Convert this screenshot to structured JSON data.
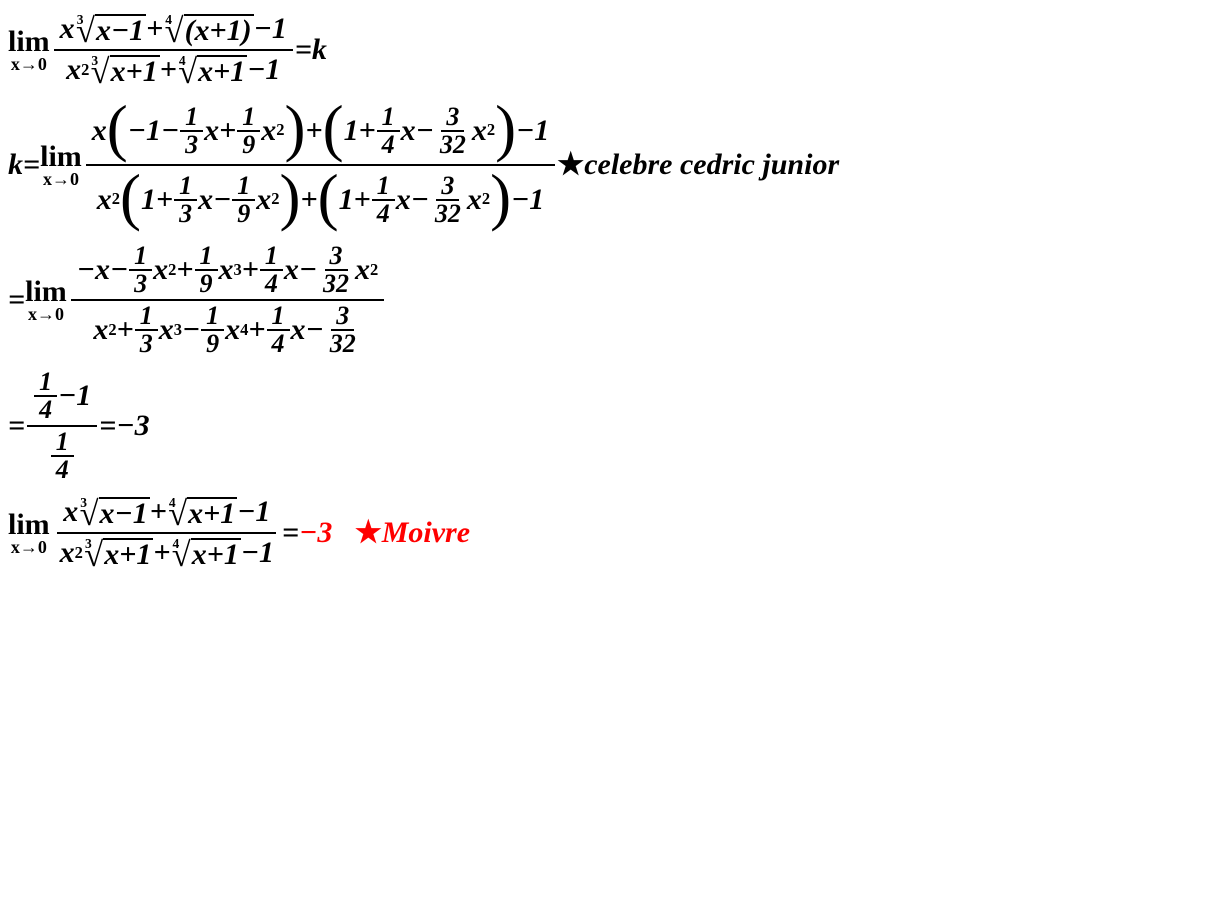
{
  "colors": {
    "text": "#000000",
    "highlight": "#ff0000",
    "background": "#ffffff"
  },
  "typography": {
    "font_family": "Times New Roman, serif",
    "base_size_pt": 30,
    "style": "italic bold"
  },
  "line1": {
    "lim_top": "lim",
    "lim_bot": "x→0",
    "num": "x∛(x−1)+∜(x+1)−1",
    "den": "x²∛(x+1)+∜(x+1)−1",
    "eq": "=k"
  },
  "line2": {
    "lhs": "k=",
    "lim_top": "lim",
    "lim_bot": "x→0",
    "num_parts": {
      "pre": "x",
      "p1_a": "−1−",
      "p1_f1n": "1",
      "p1_f1d": "3",
      "p1_b": "x+",
      "p1_f2n": "1",
      "p1_f2d": "9",
      "p1_c": "x",
      "p1_sup": "2",
      "mid": "+",
      "p2_a": "1+",
      "p2_f1n": "1",
      "p2_f1d": "4",
      "p2_b": "x−",
      "p2_f2n": "3",
      "p2_f2d": "32",
      "p2_c": "x",
      "p2_sup": "2",
      "tail": "−1"
    },
    "den_parts": {
      "pre": "x",
      "pre_sup": "2",
      "p1_a": "1+",
      "p1_f1n": "1",
      "p1_f1d": "3",
      "p1_b": "x−",
      "p1_f2n": "1",
      "p1_f2d": "9",
      "p1_c": "x",
      "p1_sup": "2",
      "mid": "+",
      "p2_a": "1+",
      "p2_f1n": "1",
      "p2_f1d": "4",
      "p2_b": "x−",
      "p2_f2n": "3",
      "p2_f2d": "32",
      "p2_c": "x",
      "p2_sup": "2",
      "tail": "−1"
    },
    "annot_star": "★",
    "annot_text": "celebre cedric junior"
  },
  "line3": {
    "eq": "=",
    "lim_top": "lim",
    "lim_bot": "x→0",
    "num": {
      "t1": "−x−",
      "f1n": "1",
      "f1d": "3",
      "t2": "x",
      "s2": "2",
      "t3": "+",
      "f2n": "1",
      "f2d": "9",
      "t4": "x",
      "s4": "3",
      "t5": "+",
      "f3n": "1",
      "f3d": "4",
      "t6": "x−",
      "f4n": "3",
      "f4d": "32",
      "t7": "x",
      "s7": "2"
    },
    "den": {
      "t1": "x",
      "s1": "2",
      "t2": "+",
      "f1n": "1",
      "f1d": "3",
      "t3": "x",
      "s3": "3",
      "t4": "−",
      "f2n": "1",
      "f2d": "9",
      "t5": "x",
      "s5": "4",
      "t6": "+",
      "f3n": "1",
      "f3d": "4",
      "t7": "x−",
      "f4n": "3",
      "f4d": "32"
    }
  },
  "line4": {
    "eq": "=",
    "num_fn": "1",
    "num_fd": "4",
    "num_t": "−1",
    "den_fn": "1",
    "den_fd": "4",
    "result": "=−3"
  },
  "line5": {
    "lim_top": "lim",
    "lim_bot": "x→0",
    "eq": "=",
    "result_red": "−3",
    "spacer": "   ",
    "star": "★",
    "name": "Moivre"
  },
  "roots": {
    "r3": "3",
    "r4": "4",
    "xm1": "x−1",
    "xp1": "x+1",
    "xp1p": "(x+1)"
  }
}
